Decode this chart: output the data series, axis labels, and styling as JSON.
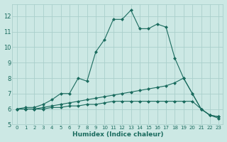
{
  "xlabel": "Humidex (Indice chaleur)",
  "ylabel": "",
  "bg_color": "#cce8e4",
  "grid_color": "#aacfcb",
  "line_color": "#1a6b5e",
  "xlim": [
    -0.5,
    23.5
  ],
  "ylim": [
    5,
    12.8
  ],
  "xticks": [
    0,
    1,
    2,
    3,
    4,
    5,
    6,
    7,
    8,
    9,
    10,
    11,
    12,
    13,
    14,
    15,
    16,
    17,
    18,
    19,
    20,
    21,
    22,
    23
  ],
  "yticks": [
    5,
    6,
    7,
    8,
    9,
    10,
    11,
    12
  ],
  "line1_x": [
    0,
    1,
    2,
    3,
    4,
    5,
    6,
    7,
    8,
    9,
    10,
    11,
    12,
    13,
    14,
    15,
    16,
    17,
    18,
    19,
    20,
    21,
    22,
    23
  ],
  "line1_y": [
    6.0,
    6.1,
    6.1,
    6.3,
    6.6,
    7.0,
    7.0,
    8.0,
    7.8,
    9.7,
    10.5,
    11.8,
    11.8,
    12.4,
    11.2,
    11.2,
    11.5,
    11.3,
    9.3,
    8.0,
    7.0,
    6.0,
    5.6,
    5.5
  ],
  "line2_x": [
    0,
    1,
    2,
    3,
    4,
    5,
    6,
    7,
    8,
    9,
    10,
    11,
    12,
    13,
    14,
    15,
    16,
    17,
    18,
    19,
    20,
    21,
    22,
    23
  ],
  "line2_y": [
    6.0,
    6.0,
    6.0,
    6.1,
    6.2,
    6.3,
    6.4,
    6.5,
    6.6,
    6.7,
    6.8,
    6.9,
    7.0,
    7.1,
    7.2,
    7.3,
    7.4,
    7.5,
    7.7,
    8.0,
    7.0,
    6.0,
    5.6,
    5.5
  ],
  "line3_x": [
    0,
    1,
    2,
    3,
    4,
    5,
    6,
    7,
    8,
    9,
    10,
    11,
    12,
    13,
    14,
    15,
    16,
    17,
    18,
    19,
    20,
    21,
    22,
    23
  ],
  "line3_y": [
    6.0,
    6.0,
    6.0,
    6.0,
    6.1,
    6.1,
    6.2,
    6.2,
    6.3,
    6.3,
    6.4,
    6.5,
    6.5,
    6.5,
    6.5,
    6.5,
    6.5,
    6.5,
    6.5,
    6.5,
    6.5,
    6.0,
    5.6,
    5.4
  ]
}
